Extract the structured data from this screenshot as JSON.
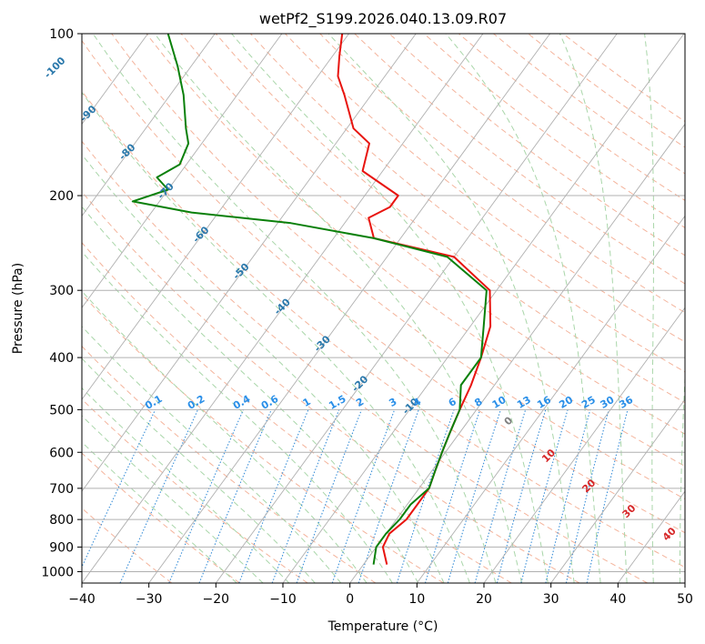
{
  "chart_data": {
    "type": "skew-t",
    "title": "wetPf2_S199.2026.040.13.09.R07",
    "xlabel": "Temperature (°C)",
    "ylabel": "Pressure (hPa)",
    "xlim": [
      -40,
      50
    ],
    "ylim": [
      1050,
      100
    ],
    "x_ticks": [
      -40,
      -30,
      -20,
      -10,
      0,
      10,
      20,
      30,
      40,
      50
    ],
    "x_tick_labels": [
      "−40",
      "−30",
      "−20",
      "−10",
      "0",
      "10",
      "20",
      "30",
      "40",
      "50"
    ],
    "y_ticks": [
      1000,
      900,
      800,
      700,
      600,
      500,
      400,
      300,
      200,
      100
    ],
    "y_tick_labels": [
      "1000",
      "900",
      "800",
      "700",
      "600",
      "500",
      "400",
      "300",
      "200",
      "100"
    ],
    "grid": true,
    "colors": {
      "temperature": "#e8140f",
      "dewpoint": "#0a800a",
      "isotherm": "#b0b0b0",
      "dry_adiabat": "#f4b49c",
      "moist_adiabat": "#a9d6a9",
      "mixing_ratio": "#3a8fd8",
      "labels_dark": "#2a78ab",
      "labels_light": "#2a8fe8",
      "labels_red": "#d62728",
      "labels_gray": "#7f7f7f"
    },
    "series": [
      {
        "name": "temperature",
        "points": [
          {
            "p": 970,
            "t": 3.5
          },
          {
            "p": 900,
            "t": 1.0
          },
          {
            "p": 850,
            "t": 0.5
          },
          {
            "p": 800,
            "t": 1.5
          },
          {
            "p": 750,
            "t": 1.5
          },
          {
            "p": 700,
            "t": 1.5
          },
          {
            "p": 650,
            "t": 0.5
          },
          {
            "p": 600,
            "t": -0.5
          },
          {
            "p": 550,
            "t": -1.5
          },
          {
            "p": 500,
            "t": -2.5
          },
          {
            "p": 450,
            "t": -3.5
          },
          {
            "p": 400,
            "t": -5.0
          },
          {
            "p": 350,
            "t": -7.0
          },
          {
            "p": 300,
            "t": -11.0
          },
          {
            "p": 260,
            "t": -20.0
          },
          {
            "p": 240,
            "t": -34.0
          },
          {
            "p": 220,
            "t": -37.0
          },
          {
            "p": 210,
            "t": -35.0
          },
          {
            "p": 200,
            "t": -35.0
          },
          {
            "p": 180,
            "t": -43.0
          },
          {
            "p": 160,
            "t": -45.0
          },
          {
            "p": 150,
            "t": -49.0
          },
          {
            "p": 130,
            "t": -54.0
          },
          {
            "p": 120,
            "t": -57.0
          },
          {
            "p": 110,
            "t": -59.0
          },
          {
            "p": 100,
            "t": -61.0
          }
        ]
      },
      {
        "name": "dewpoint",
        "points": [
          {
            "p": 970,
            "t": 1.5
          },
          {
            "p": 900,
            "t": 0.0
          },
          {
            "p": 850,
            "t": 0.0
          },
          {
            "p": 800,
            "t": 0.5
          },
          {
            "p": 750,
            "t": 0.5
          },
          {
            "p": 700,
            "t": 1.5
          },
          {
            "p": 650,
            "t": 0.5
          },
          {
            "p": 600,
            "t": -0.5
          },
          {
            "p": 550,
            "t": -1.5
          },
          {
            "p": 500,
            "t": -2.5
          },
          {
            "p": 450,
            "t": -5.0
          },
          {
            "p": 400,
            "t": -5.0
          },
          {
            "p": 350,
            "t": -8.0
          },
          {
            "p": 300,
            "t": -11.5
          },
          {
            "p": 260,
            "t": -21.0
          },
          {
            "p": 240,
            "t": -34.0
          },
          {
            "p": 225,
            "t": -48.0
          },
          {
            "p": 215,
            "t": -64.0
          },
          {
            "p": 205,
            "t": -74.0
          },
          {
            "p": 195,
            "t": -70.0
          },
          {
            "p": 185,
            "t": -73.0
          },
          {
            "p": 175,
            "t": -71.0
          },
          {
            "p": 160,
            "t": -72.0
          },
          {
            "p": 150,
            "t": -74.0
          },
          {
            "p": 130,
            "t": -78.0
          },
          {
            "p": 115,
            "t": -82.0
          },
          {
            "p": 100,
            "t": -87.0
          }
        ]
      }
    ],
    "dry_adiabat_labels": [
      "-100",
      "-90",
      "-80",
      "-70",
      "-60",
      "-50",
      "-40",
      "-30",
      "-20",
      "-10"
    ],
    "moist_adiabat_labels": [
      "0",
      "10",
      "20",
      "30",
      "40"
    ],
    "mixing_ratio_labels": [
      "0.1",
      "0.2",
      "0.4",
      "0.6",
      "1",
      "1.5",
      "2",
      "3",
      "4",
      "6",
      "8",
      "10",
      "13",
      "16",
      "20",
      "25",
      "30",
      "36"
    ]
  }
}
